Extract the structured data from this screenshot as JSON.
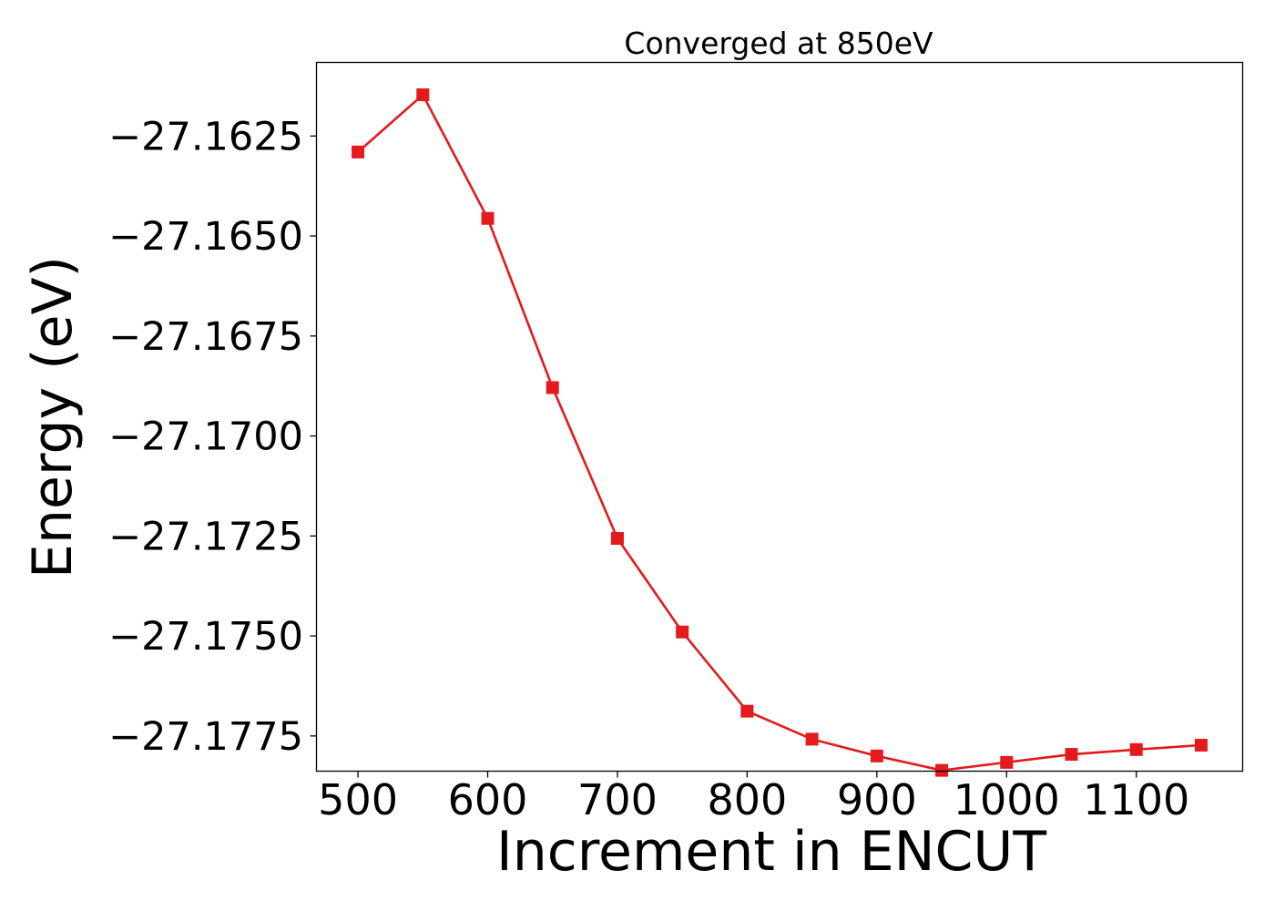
{
  "chart_data": {
    "type": "line",
    "title": "Converged at 850eV",
    "xlabel": "Increment in ENCUT",
    "ylabel": "Energy (eV)",
    "x": [
      500,
      550,
      600,
      650,
      700,
      750,
      800,
      850,
      900,
      950,
      1000,
      1050,
      1100,
      1150
    ],
    "series": [
      {
        "values": [
          -27.1629,
          -27.16147,
          -27.16456,
          -27.16879,
          -27.17256,
          -27.1749,
          -27.17688,
          -27.17758,
          -27.178,
          -27.17836,
          -27.17816,
          -27.17796,
          -27.17784,
          -27.17773
        ],
        "color": "#e41a1c",
        "marker": "square"
      }
    ],
    "xticks": [
      500,
      600,
      700,
      800,
      900,
      1000,
      1100
    ],
    "xtick_labels": [
      "500",
      "600",
      "700",
      "800",
      "900",
      "1000",
      "1100"
    ],
    "yticks": [
      -27.1625,
      -27.165,
      -27.1675,
      -27.17,
      -27.1725,
      -27.175,
      -27.1775
    ],
    "ytick_labels": [
      "−27.1625",
      "−27.1650",
      "−27.1675",
      "−27.1700",
      "−27.1725",
      "−27.1750",
      "−27.1775"
    ],
    "xlim": [
      468,
      1182
    ],
    "ylim": [
      -27.17838,
      -27.16066
    ],
    "grid": false,
    "legend": false
  }
}
